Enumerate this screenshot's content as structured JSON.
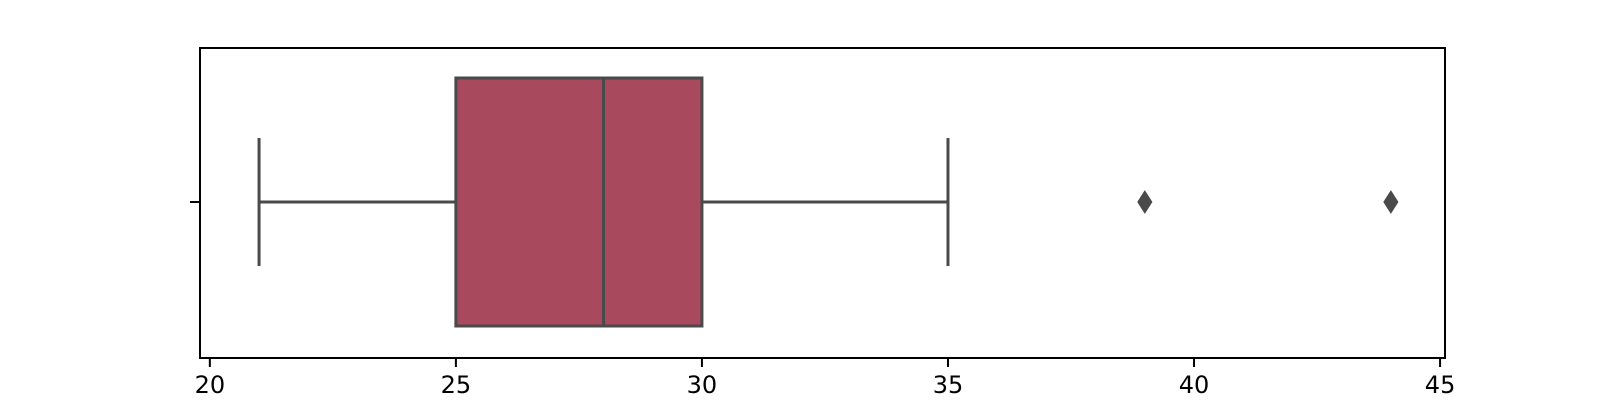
{
  "chart_data": {
    "type": "box",
    "orientation": "horizontal",
    "title": "",
    "xlabel": "",
    "ylabel": "",
    "xlim": [
      19.8,
      45.1
    ],
    "x_ticks": [
      20,
      25,
      30,
      35,
      40,
      45
    ],
    "box": {
      "whisker_low": 21,
      "q1": 25,
      "median": 28,
      "q3": 30,
      "whisker_high": 35,
      "outliers": [
        39,
        44
      ]
    },
    "grid": false,
    "legend": "none",
    "colors": {
      "box_fill": "#a9495d",
      "line": "#4a4a4a",
      "axes": "#000000"
    }
  }
}
